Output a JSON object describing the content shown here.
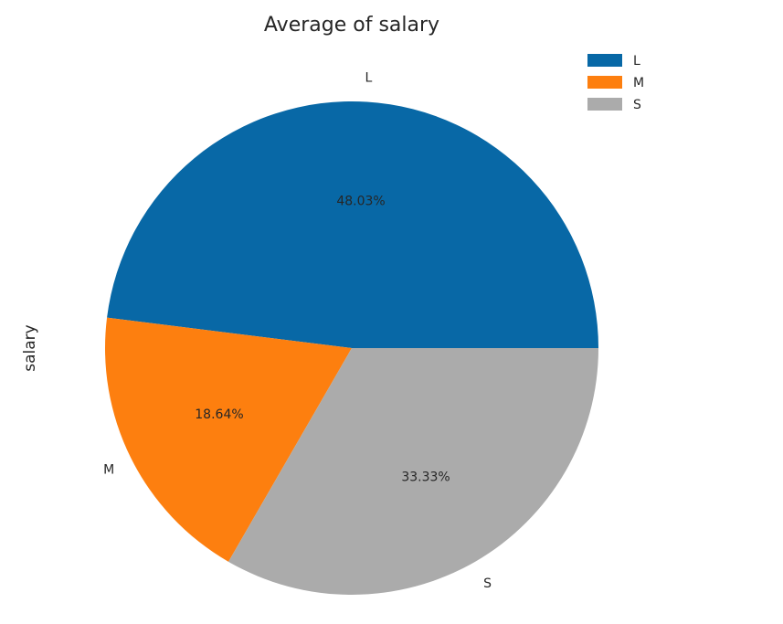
{
  "chart_data": {
    "type": "pie",
    "title": "Average of salary",
    "ylabel": "salary",
    "categories": [
      "L",
      "M",
      "S"
    ],
    "values": [
      48.03,
      18.64,
      33.33
    ],
    "percent_labels": [
      "48.03%",
      "18.64%",
      "33.33%"
    ],
    "colors": [
      "#0868a6",
      "#fd7f0f",
      "#ababab"
    ],
    "start_angle_deg": 0,
    "direction": "counterclockwise",
    "legend": {
      "placement": "top-right",
      "entries": [
        "L",
        "M",
        "S"
      ]
    }
  }
}
